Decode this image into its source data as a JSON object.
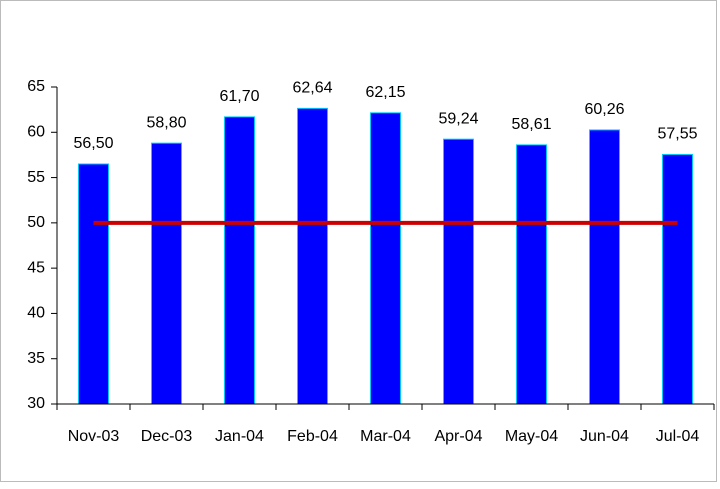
{
  "chart_data": {
    "type": "bar",
    "categories": [
      "Nov-03",
      "Dec-03",
      "Jan-04",
      "Feb-04",
      "Mar-04",
      "Apr-04",
      "May-04",
      "Jun-04",
      "Jul-04"
    ],
    "series": [
      {
        "type": "bar",
        "color": "#0000ff",
        "values": [
          56.5,
          58.8,
          61.7,
          62.64,
          62.15,
          59.24,
          58.61,
          60.26,
          57.55
        ],
        "value_labels": [
          "56,50",
          "58,80",
          "61,70",
          "62,64",
          "62,15",
          "59,24",
          "58,61",
          "60,26",
          "57,55"
        ]
      },
      {
        "type": "line",
        "color": "#cc0000",
        "values": [
          50,
          50,
          50,
          50,
          50,
          50,
          50,
          50,
          50
        ]
      }
    ],
    "ylim": [
      30,
      65
    ],
    "yticks": [
      30,
      35,
      40,
      45,
      50,
      55,
      60,
      65
    ]
  }
}
